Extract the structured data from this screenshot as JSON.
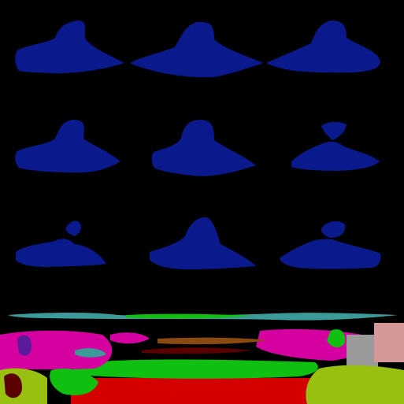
{
  "colors": {
    "background": "#000000",
    "blob": "#0a1a8c",
    "red": "#d40000",
    "green": "#10c010",
    "magenta": "#d400a0",
    "teal": "#3c9a98",
    "gray": "#9a9a9a",
    "pink": "#d49898",
    "olive": "#98c010",
    "brown": "#8a4a10",
    "purple": "#5a1a9a",
    "darkred": "#5a0000"
  },
  "grid": {
    "rows": 3,
    "cols": 3
  }
}
